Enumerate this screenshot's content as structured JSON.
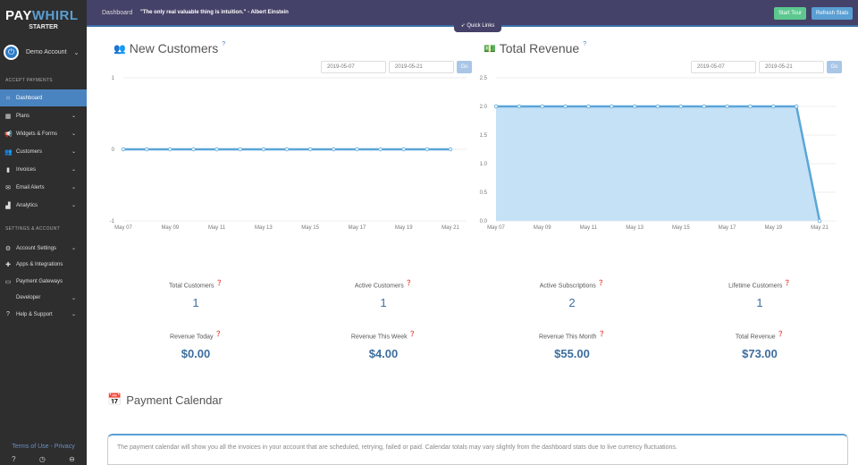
{
  "sidebar": {
    "logo_a": "PAY",
    "logo_b": "WHIRL",
    "plan": "STARTER",
    "account": "Demo Account",
    "section1": "ACCEPT PAYMENTS",
    "section2": "SETTINGS & ACCOUNT",
    "items": [
      {
        "label": "Dashboard",
        "icon": "home-icon"
      },
      {
        "label": "Plans",
        "icon": "calendar-icon"
      },
      {
        "label": "Widgets & Forms",
        "icon": "megaphone-icon"
      },
      {
        "label": "Customers",
        "icon": "users-icon"
      },
      {
        "label": "Invoices",
        "icon": "file-icon"
      },
      {
        "label": "Email Alerts",
        "icon": "envelope-icon"
      },
      {
        "label": "Analytics",
        "icon": "bar-chart-icon"
      }
    ],
    "settings": [
      {
        "label": "Account Settings",
        "icon": "gear-icon"
      },
      {
        "label": "Apps & Integrations",
        "icon": "puzzle-icon"
      },
      {
        "label": "Payment Gateways",
        "icon": "credit-card-icon"
      },
      {
        "label": "Developer",
        "icon": "code-icon"
      },
      {
        "label": "Help & Support",
        "icon": "question-icon"
      }
    ],
    "footer": "Terms of Use - Privacy"
  },
  "topbar": {
    "breadcrumb": "Dashboard",
    "quote": "\"The only real valuable thing is intuition.\" - Albert Einstein",
    "start_tour": "Start Tour",
    "refresh": "Refresh Stats",
    "quick_links": "Quick Links"
  },
  "colors": {
    "accent": "#4a84c0",
    "topbar": "#444268",
    "green": "#5cc88f"
  },
  "new_customers": {
    "title": "New Customers",
    "from": "2019-05-07",
    "to": "2019-05-21",
    "go": "Go"
  },
  "total_revenue": {
    "title": "Total Revenue",
    "from": "2019-05-07",
    "to": "2019-05-21",
    "go": "Go"
  },
  "chart_data": [
    {
      "type": "line",
      "title": "New Customers",
      "x": [
        "May 07",
        "May 08",
        "May 09",
        "May 10",
        "May 11",
        "May 12",
        "May 13",
        "May 14",
        "May 15",
        "May 16",
        "May 17",
        "May 18",
        "May 19",
        "May 20",
        "May 21"
      ],
      "values": [
        0,
        0,
        0,
        0,
        0,
        0,
        0,
        0,
        0,
        0,
        0,
        0,
        0,
        0,
        0
      ],
      "xticks": [
        "May 07",
        "May 09",
        "May 11",
        "May 13",
        "May 15",
        "May 17",
        "May 19",
        "May 21"
      ],
      "yticks": [
        "1",
        "0",
        "-1"
      ],
      "ylim": [
        -1,
        1
      ]
    },
    {
      "type": "area",
      "title": "Total Revenue",
      "x": [
        "May 07",
        "May 08",
        "May 09",
        "May 10",
        "May 11",
        "May 12",
        "May 13",
        "May 14",
        "May 15",
        "May 16",
        "May 17",
        "May 18",
        "May 19",
        "May 20",
        "May 21"
      ],
      "values": [
        2,
        2,
        2,
        2,
        2,
        2,
        2,
        2,
        2,
        2,
        2,
        2,
        2,
        2,
        0
      ],
      "xticks": [
        "May 07",
        "May 09",
        "May 11",
        "May 13",
        "May 15",
        "May 17",
        "May 19",
        "May 21"
      ],
      "yticks": [
        "2.5",
        "2.0",
        "1.5",
        "1.0",
        "0.5",
        "0.0"
      ],
      "ylim": [
        0,
        2.5
      ]
    }
  ],
  "stats": [
    {
      "label": "Total Customers",
      "value": "1"
    },
    {
      "label": "Active Customers",
      "value": "1"
    },
    {
      "label": "Active Subscriptions",
      "value": "2"
    },
    {
      "label": "Lifetime Customers",
      "value": "1"
    },
    {
      "label": "Revenue Today",
      "value": "$0.00"
    },
    {
      "label": "Revenue This Week",
      "value": "$4.00"
    },
    {
      "label": "Revenue This Month",
      "value": "$55.00"
    },
    {
      "label": "Total Revenue",
      "value": "$73.00"
    }
  ],
  "calendar": {
    "title": "Payment Calendar",
    "info": "The payment calendar will show you all the invoices in your account that are scheduled, retrying, failed or paid. Calendar totals may vary slightly from the dashboard stats due to live currency fluctuations."
  }
}
